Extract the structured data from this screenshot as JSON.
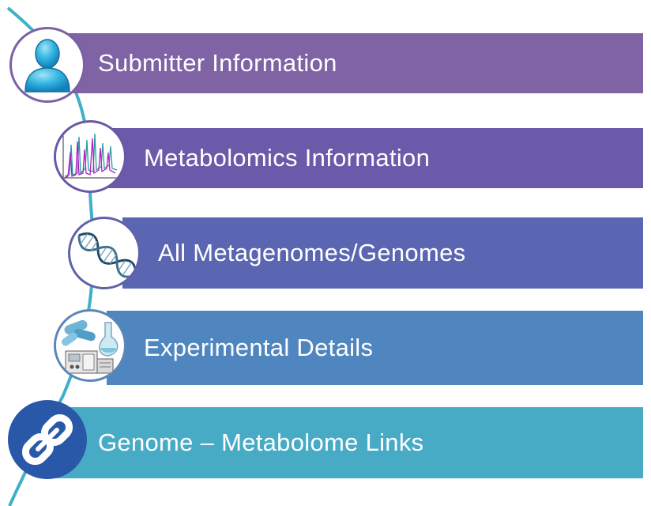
{
  "items": [
    {
      "label": "Submitter  Information",
      "color": "#7f63a5",
      "icon": "user-icon"
    },
    {
      "label": "Metabolomics Information",
      "color": "#6a5aa9",
      "icon": "spectrum-icon"
    },
    {
      "label": "All Metagenomes/Genomes",
      "color": "#5b66b2",
      "icon": "dna-icon"
    },
    {
      "label": "Experimental  Details",
      "color": "#4f86c0",
      "icon": "lab-equipment-icon"
    },
    {
      "label": "Genome – Metabolome Links",
      "color": "#47abc6",
      "icon": "link-icon"
    }
  ],
  "colors": {
    "curve": "#3fb0c8",
    "link_circle": "#2a58a8"
  }
}
